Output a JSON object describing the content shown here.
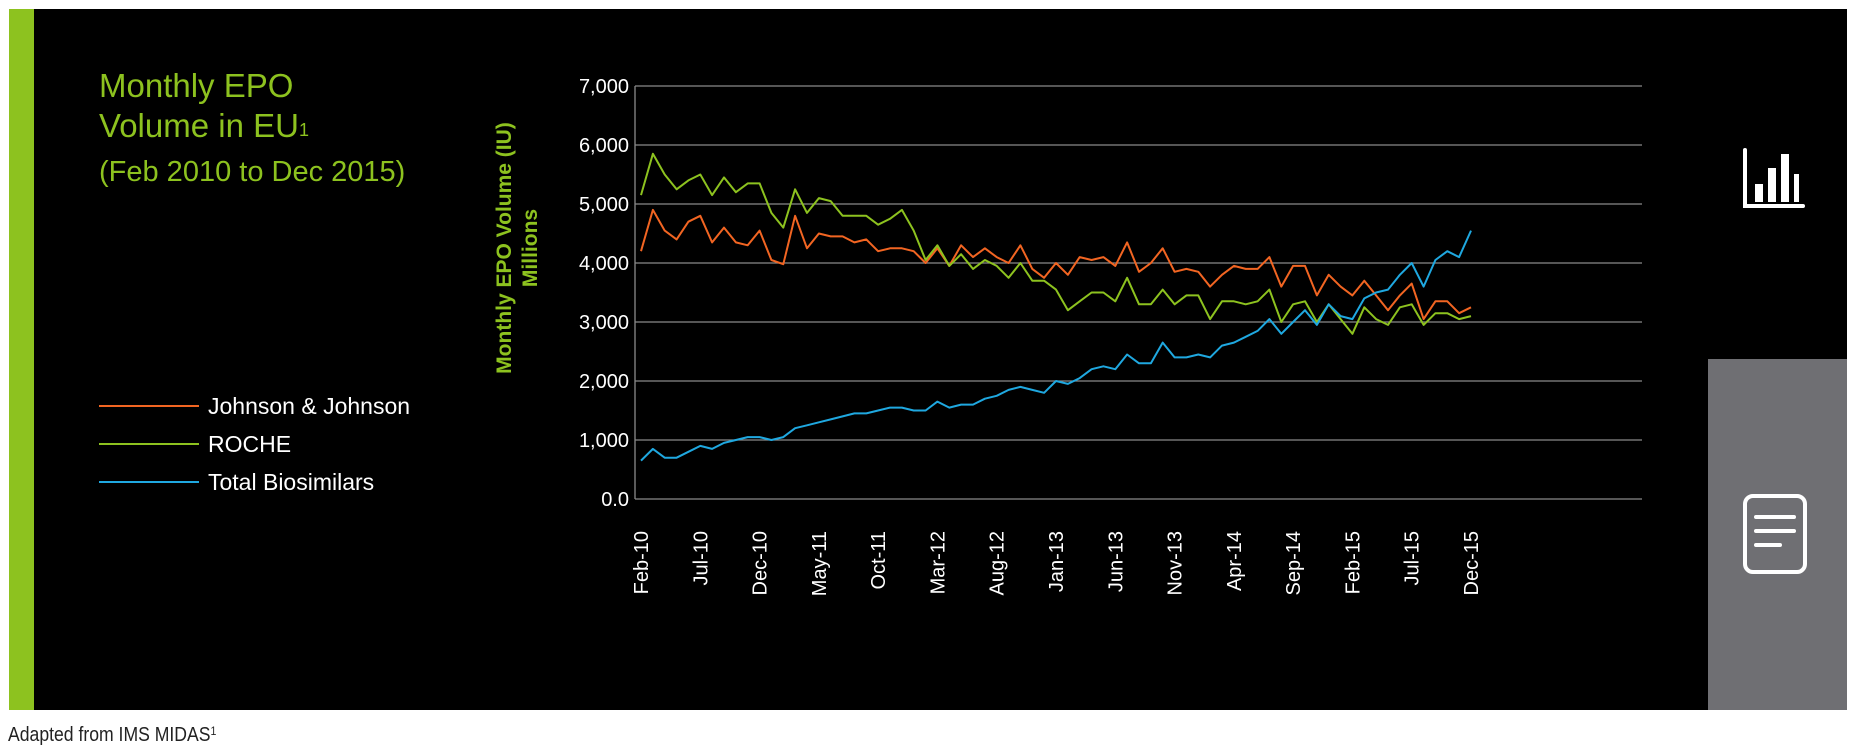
{
  "colors": {
    "green": "#8dc21f",
    "orange": "#f26522",
    "blue": "#1fa8e0",
    "panel": "#000000",
    "side": "#6f6f73"
  },
  "header": {
    "title": "Monthly EPO Volume in EU",
    "title_line1": "Monthly EPO",
    "title_line2": "Volume in EU",
    "title_sup": "1",
    "subtitle": "(Feb 2010 to Dec 2015)"
  },
  "legend": [
    {
      "label": "Johnson & Johnson",
      "color": "#f26522"
    },
    {
      "label": "ROCHE",
      "color": "#8dc21f"
    },
    {
      "label": "Total Biosimilars",
      "color": "#1fa8e0"
    }
  ],
  "sidebar": {
    "chart_icon": "bar-chart-icon",
    "doc_icon": "document-icon"
  },
  "footer": {
    "source": "Adapted from IMS MIDAS",
    "source_sup": "1"
  },
  "chart_data": {
    "type": "line",
    "ylabel_line1": "Monthly EPO Volume (IU)",
    "ylabel_line2": "Millions",
    "ylim": [
      0,
      7000
    ],
    "yticks": [
      0,
      1000,
      2000,
      3000,
      4000,
      5000,
      6000,
      7000
    ],
    "ytick_labels": [
      "0.0",
      "1,000",
      "2,000",
      "3,000",
      "4,000",
      "5,000",
      "6,000",
      "7,000"
    ],
    "grid": true,
    "x_tick_labels": [
      "Feb-10",
      "Jul-10",
      "Dec-10",
      "May-11",
      "Oct-11",
      "Mar-12",
      "Aug-12",
      "Jan-13",
      "Jun-13",
      "Nov-13",
      "Apr-14",
      "Sep-14",
      "Feb-15",
      "Jul-15",
      "Dec-15"
    ],
    "x_tick_every": 5,
    "x": [
      "Feb-10",
      "Mar-10",
      "Apr-10",
      "May-10",
      "Jun-10",
      "Jul-10",
      "Aug-10",
      "Sep-10",
      "Oct-10",
      "Nov-10",
      "Dec-10",
      "Jan-11",
      "Feb-11",
      "Mar-11",
      "Apr-11",
      "May-11",
      "Jun-11",
      "Jul-11",
      "Aug-11",
      "Sep-11",
      "Oct-11",
      "Nov-11",
      "Dec-11",
      "Jan-12",
      "Feb-12",
      "Mar-12",
      "Apr-12",
      "May-12",
      "Jun-12",
      "Jul-12",
      "Aug-12",
      "Sep-12",
      "Oct-12",
      "Nov-12",
      "Dec-12",
      "Jan-13",
      "Feb-13",
      "Mar-13",
      "Apr-13",
      "May-13",
      "Jun-13",
      "Jul-13",
      "Aug-13",
      "Sep-13",
      "Oct-13",
      "Nov-13",
      "Dec-13",
      "Jan-14",
      "Feb-14",
      "Mar-14",
      "Apr-14",
      "May-14",
      "Jun-14",
      "Jul-14",
      "Aug-14",
      "Sep-14",
      "Oct-14",
      "Nov-14",
      "Dec-14",
      "Jan-15",
      "Feb-15",
      "Mar-15",
      "Apr-15",
      "May-15",
      "Jun-15",
      "Jul-15",
      "Aug-15",
      "Sep-15",
      "Oct-15",
      "Nov-15",
      "Dec-15"
    ],
    "series": [
      {
        "name": "Johnson & Johnson",
        "color": "#f26522",
        "values": [
          4200,
          4900,
          4550,
          4400,
          4700,
          4800,
          4350,
          4600,
          4350,
          4300,
          4550,
          4050,
          3980,
          4800,
          4250,
          4500,
          4450,
          4450,
          4350,
          4400,
          4200,
          4250,
          4250,
          4200,
          4000,
          4250,
          3950,
          4300,
          4100,
          4250,
          4100,
          4000,
          4300,
          3900,
          3750,
          4000,
          3800,
          4100,
          4050,
          4100,
          3950,
          4350,
          3850,
          4000,
          4250,
          3850,
          3900,
          3850,
          3600,
          3800,
          3950,
          3900,
          3900,
          4100,
          3600,
          3950,
          3950,
          3450,
          3800,
          3600,
          3450,
          3700,
          3450,
          3200,
          3450,
          3650,
          3050,
          3350,
          3350,
          3150,
          3250
        ]
      },
      {
        "name": "ROCHE",
        "color": "#8dc21f",
        "values": [
          5150,
          5850,
          5500,
          5250,
          5400,
          5500,
          5150,
          5450,
          5200,
          5350,
          5350,
          4850,
          4600,
          5250,
          4850,
          5100,
          5050,
          4800,
          4800,
          4800,
          4650,
          4750,
          4900,
          4550,
          4050,
          4300,
          3950,
          4150,
          3900,
          4050,
          3950,
          3750,
          4000,
          3700,
          3700,
          3550,
          3200,
          3350,
          3500,
          3500,
          3350,
          3750,
          3300,
          3300,
          3550,
          3300,
          3450,
          3450,
          3050,
          3350,
          3350,
          3300,
          3350,
          3550,
          3000,
          3300,
          3350,
          3000,
          3300,
          3050,
          2800,
          3250,
          3050,
          2950,
          3250,
          3300,
          2950,
          3150,
          3150,
          3050,
          3100
        ]
      },
      {
        "name": "Total Biosimilars",
        "color": "#1fa8e0",
        "values": [
          650,
          850,
          700,
          700,
          800,
          900,
          850,
          950,
          1000,
          1050,
          1050,
          1000,
          1050,
          1200,
          1250,
          1300,
          1350,
          1400,
          1450,
          1450,
          1500,
          1550,
          1550,
          1500,
          1500,
          1650,
          1550,
          1600,
          1600,
          1700,
          1750,
          1850,
          1900,
          1850,
          1800,
          2000,
          1950,
          2050,
          2200,
          2250,
          2200,
          2450,
          2300,
          2300,
          2650,
          2400,
          2400,
          2450,
          2400,
          2600,
          2650,
          2750,
          2850,
          3050,
          2800,
          3000,
          3200,
          2950,
          3300,
          3100,
          3050,
          3400,
          3500,
          3550,
          3800,
          4000,
          3600,
          4050,
          4200,
          4100,
          4550
        ]
      }
    ]
  }
}
